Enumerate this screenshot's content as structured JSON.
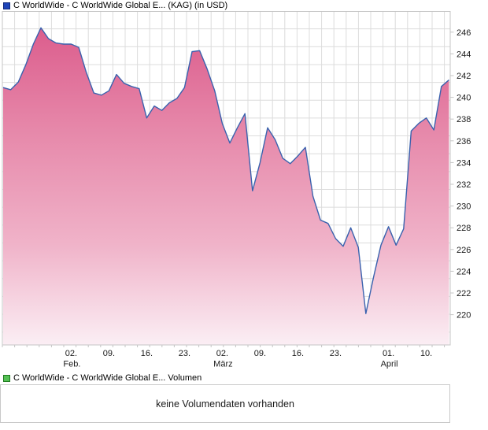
{
  "price_panel": {
    "legend_label": "C WorldWide - C WorldWide Global E... (KAG) (in USD)",
    "legend_color": "#1e44b8",
    "legend_border": "#12297a"
  },
  "volume_panel": {
    "legend_label": "C WorldWide - C WorldWide Global E... Volumen",
    "legend_color": "#54c054",
    "legend_border": "#1e7a1e",
    "message": "keine Volumendaten vorhanden"
  },
  "chart_data": {
    "type": "area",
    "title": "C WorldWide - C WorldWide Global E... (KAG) (in USD)",
    "unit": "USD",
    "grid": true,
    "legend_position": "top-left",
    "ylim": [
      217.2,
      247.9
    ],
    "y_ticks": [
      246,
      244,
      242,
      240,
      238,
      236,
      234,
      232,
      230,
      228,
      226,
      224,
      222,
      220
    ],
    "x_ticks": [
      {
        "label": "02.",
        "sub": "Feb.",
        "index": 9
      },
      {
        "label": "09.",
        "sub": "",
        "index": 14
      },
      {
        "label": "16.",
        "sub": "",
        "index": 19
      },
      {
        "label": "23.",
        "sub": "",
        "index": 24
      },
      {
        "label": "02.",
        "sub": "März",
        "index": 29
      },
      {
        "label": "09.",
        "sub": "",
        "index": 34
      },
      {
        "label": "16.",
        "sub": "",
        "index": 39
      },
      {
        "label": "23.",
        "sub": "",
        "index": 44
      },
      {
        "label": "01.",
        "sub": "April",
        "index": 51
      },
      {
        "label": "10.",
        "sub": "",
        "index": 56
      }
    ],
    "series": [
      {
        "name": "C WorldWide - C WorldWide Global E... (KAG)",
        "values": [
          240.9,
          240.7,
          241.4,
          243.0,
          244.9,
          246.4,
          245.4,
          245.0,
          244.9,
          244.9,
          244.6,
          242.3,
          240.4,
          240.2,
          240.6,
          242.1,
          241.3,
          241.0,
          240.8,
          238.1,
          239.2,
          238.8,
          239.5,
          239.9,
          240.9,
          244.2,
          244.3,
          242.6,
          240.6,
          237.6,
          235.8,
          237.2,
          238.5,
          231.4,
          234.0,
          237.2,
          236.1,
          234.4,
          233.9,
          234.6,
          235.4,
          230.9,
          228.7,
          228.4,
          227.0,
          226.3,
          228.0,
          226.2,
          220.1,
          223.4,
          226.4,
          228.1,
          226.4,
          227.9,
          236.9,
          237.6,
          238.1,
          237.0,
          241.0,
          241.6
        ]
      }
    ],
    "colors": {
      "line": "#3a62ae",
      "fill_stops": [
        [
          "0%",
          "#da5688"
        ],
        [
          "35%",
          "#e687a9"
        ],
        [
          "70%",
          "#f0b3c9"
        ],
        [
          "100%",
          "#fbeef4"
        ]
      ],
      "grid": "#dcdcdc",
      "border": "#c4c4c4",
      "tick_text": "#1a1a1a"
    }
  }
}
